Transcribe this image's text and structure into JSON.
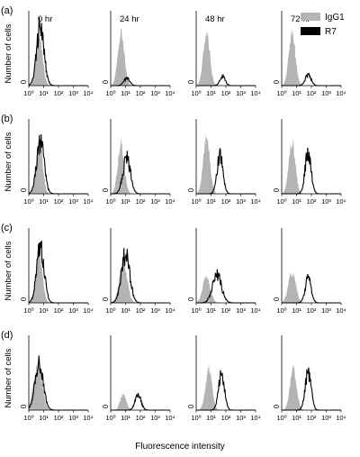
{
  "chart_data": {
    "type": "area",
    "xlabel": "Fluorescence intensity",
    "ylabel": "Number of cells",
    "x_scale": "log",
    "xlim": [
      1,
      10000
    ],
    "x_tick_labels": [
      "10⁰",
      "10¹",
      "10²",
      "10³",
      "10⁴"
    ],
    "y_tick_label": "0",
    "columns": [
      "0 hr",
      "24 hr",
      "48 hr",
      "72 hr"
    ],
    "legend": {
      "position": "top-right",
      "entries": [
        {
          "name": "IgG1",
          "color": "#b4b4b4",
          "style": "filled"
        },
        {
          "name": "R7",
          "color": "#000000",
          "style": "line"
        }
      ]
    },
    "panels": [
      {
        "label": "(a)",
        "series": [
          {
            "name": "IgG1",
            "peaks": [
              [
                5,
                0.7,
                0.22,
                0.75
              ]
            ]
          },
          {
            "name": "R7",
            "peaks": [
              [
                6,
                0.78,
                0.25,
                0.8
              ],
              [
                12,
                0.1,
                0.2,
                0.5
              ],
              [
                60,
                0.12,
                0.18,
                0.8
              ],
              [
                60,
                0.14,
                0.2,
                0.9
              ],
              [
                90,
                0.2,
                0.25,
                0.75
              ]
            ]
          }
        ]
      },
      {
        "label": "(b)",
        "series": [
          {
            "name": "IgG1",
            "peaks": [
              [
                5,
                0.7,
                0.22,
                0.75
              ],
              [
                5,
                0.65,
                0.22,
                0.85
              ],
              [
                5,
                0.75,
                0.22,
                0.85
              ],
              [
                5,
                0.7,
                0.22,
                0.85
              ]
            ]
          },
          {
            "name": "R7",
            "peaks": [
              [
                6,
                0.7,
                0.25,
                0.8
              ],
              [
                12,
                0.48,
                0.25,
                0.8
              ],
              [
                40,
                0.5,
                0.2,
                0.7
              ],
              [
                60,
                0.55,
                0.2,
                0.7
              ]
            ]
          }
        ]
      },
      {
        "label": "(c)",
        "series": [
          {
            "name": "IgG1",
            "peaks": [
              [
                5,
                0.7,
                0.22,
                0.75
              ],
              [
                7,
                0.55,
                0.26,
                0.85
              ],
              [
                5,
                0.35,
                0.25,
                0.85
              ],
              [
                5,
                0.4,
                0.25,
                0.85
              ]
            ]
          },
          {
            "name": "R7",
            "peaks": [
              [
                6,
                0.75,
                0.25,
                0.8
              ],
              [
                10,
                0.65,
                0.28,
                0.8
              ],
              [
                25,
                0.38,
                0.3,
                0.7
              ],
              [
                60,
                0.32,
                0.2,
                0.7
              ]
            ]
          }
        ]
      },
      {
        "label": "(d)",
        "series": [
          {
            "name": "IgG1",
            "peaks": [
              [
                4,
                0.62,
                0.28,
                0.75
              ],
              [
                7,
                0.22,
                0.2,
                0.85
              ],
              [
                7,
                0.55,
                0.22,
                0.85
              ],
              [
                6,
                0.55,
                0.22,
                0.85
              ]
            ]
          },
          {
            "name": "R7",
            "peaks": [
              [
                5,
                0.6,
                0.28,
                0.8
              ],
              [
                70,
                0.2,
                0.2,
                0.7
              ],
              [
                50,
                0.48,
                0.2,
                0.7
              ],
              [
                60,
                0.5,
                0.2,
                0.7
              ]
            ]
          }
        ]
      }
    ]
  }
}
